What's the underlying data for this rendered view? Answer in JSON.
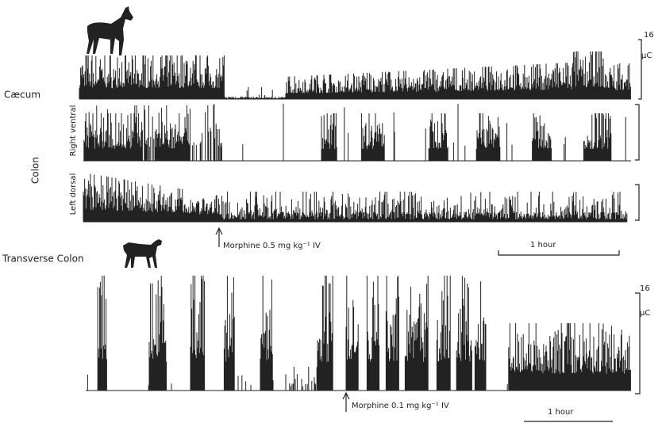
{
  "horse_panel": {
    "caecum_label": "Cæcum",
    "colon_label": "Colon",
    "right_ventral_label": "Right ventral",
    "left_dorsal_label": "Left dorsal",
    "scale_value": "16",
    "scale_unit": "μC",
    "injection_label": "Morphine 0.5 mg kg⁻¹ IV",
    "time_bar_label": "1 hour"
  },
  "dog_panel": {
    "title": "Transverse  Colon",
    "scale_value": "16",
    "scale_unit": "μC",
    "injection_label": "Morphine 0.1 mg kg⁻¹ IV",
    "time_bar_label": "1 hour"
  }
}
